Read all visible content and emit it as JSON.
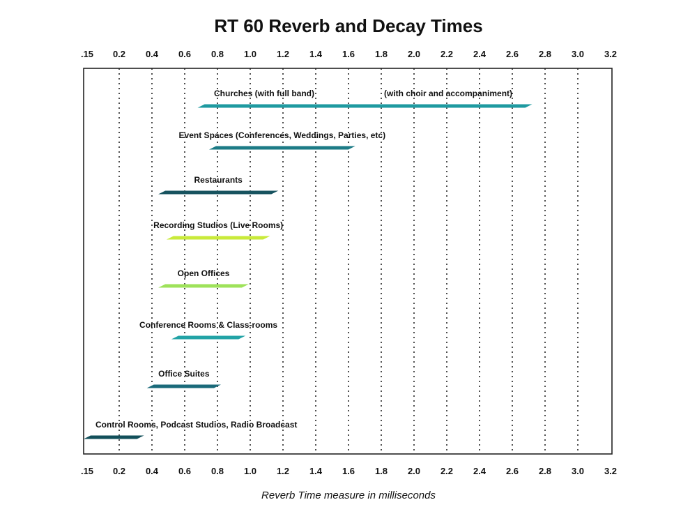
{
  "chart_data": {
    "type": "bar",
    "orientation": "horizontal-range",
    "title": "RT 60 Reverb and Decay Times",
    "xlabel": "Reverb Time measure in milliseconds",
    "ylabel": "",
    "xlim": [
      0.15,
      3.2
    ],
    "x_ticks": [
      0.15,
      0.2,
      0.4,
      0.6,
      0.8,
      1.0,
      1.2,
      1.4,
      1.6,
      1.8,
      2.0,
      2.2,
      2.4,
      2.6,
      2.8,
      3.0,
      3.2
    ],
    "x_tick_labels": [
      ".15",
      "0.2",
      "0.4",
      "0.6",
      "0.8",
      "1.0",
      "1.2",
      "1.4",
      "1.6",
      "1.8",
      "2.0",
      "2.2",
      "2.4",
      "2.6",
      "2.8",
      "3.0",
      "3.2"
    ],
    "grid": "vertical dotted",
    "series": [
      {
        "name": "Churches (with full band)",
        "extra_label": "(with choir and accompaniment)",
        "start": 0.7,
        "end": 2.7,
        "color": "#1e9aa0"
      },
      {
        "name": "Event Spaces (Conferences, Weddings, Parties, etc)",
        "start": 0.77,
        "end": 1.62,
        "color": "#1c7b86"
      },
      {
        "name": "Restaurants",
        "start": 0.46,
        "end": 1.15,
        "color": "#17535f"
      },
      {
        "name": "Recording Studios (Live Rooms)",
        "start": 0.51,
        "end": 1.1,
        "color": "#c9ea3a"
      },
      {
        "name": "Open Offices",
        "start": 0.46,
        "end": 0.97,
        "color": "#9ee25a"
      },
      {
        "name": "Conference Rooms & Class-rooms",
        "start": 0.54,
        "end": 0.95,
        "color": "#22a3a6"
      },
      {
        "name": "Office Suites",
        "start": 0.39,
        "end": 0.8,
        "color": "#1a6a7a"
      },
      {
        "name": "Control Rooms, Podcast Studios, Radio Broadcast",
        "start": 0.15,
        "end": 0.33,
        "color": "#124f5a"
      }
    ]
  }
}
